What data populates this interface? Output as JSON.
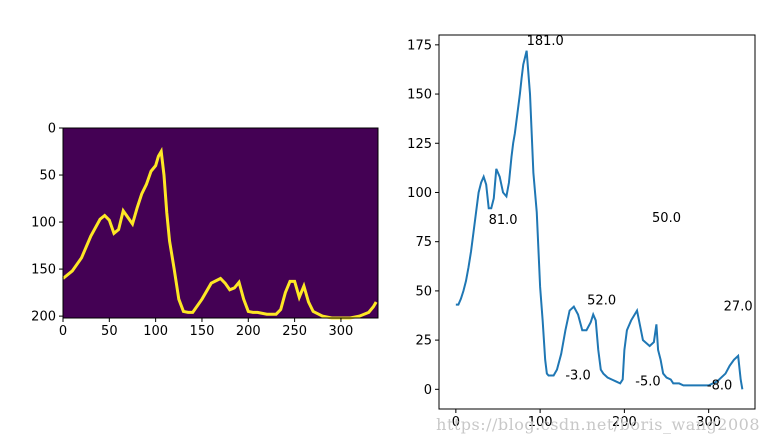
{
  "chart_data": [
    {
      "type": "heatmap",
      "colors": {
        "background": "#440154",
        "curve": "#fde725"
      },
      "xlim": [
        0,
        340
      ],
      "ylim_inverted": [
        0,
        202
      ],
      "x_ticks": [
        "0",
        "50",
        "100",
        "150",
        "200",
        "250",
        "300"
      ],
      "y_ticks": [
        "0",
        "50",
        "100",
        "150",
        "200"
      ],
      "curve": {
        "x": [
          0,
          10,
          20,
          30,
          40,
          45,
          50,
          55,
          60,
          65,
          70,
          75,
          80,
          85,
          90,
          95,
          100,
          103,
          106,
          109,
          112,
          115,
          120,
          125,
          130,
          135,
          140,
          150,
          160,
          170,
          175,
          180,
          185,
          190,
          195,
          200,
          205,
          210,
          220,
          230,
          235,
          240,
          245,
          250,
          255,
          260,
          265,
          270,
          280,
          290,
          300,
          310,
          320,
          330,
          335,
          338
        ],
        "y": [
          160,
          152,
          138,
          115,
          97,
          93,
          98,
          112,
          108,
          88,
          95,
          102,
          85,
          70,
          60,
          46,
          40,
          30,
          25,
          50,
          90,
          120,
          150,
          182,
          195,
          196,
          196,
          182,
          165,
          160,
          165,
          172,
          170,
          164,
          182,
          195,
          196,
          196,
          198,
          198,
          193,
          175,
          163,
          163,
          180,
          168,
          185,
          195,
          200,
          202,
          202,
          202,
          200,
          196,
          190,
          185
        ]
      }
    },
    {
      "type": "line",
      "colors": {
        "line": "#1f77b4"
      },
      "xlim": [
        -20,
        355
      ],
      "ylim": [
        -10,
        180
      ],
      "x_ticks": [
        "0",
        "100",
        "200",
        "300"
      ],
      "y_ticks": [
        "0",
        "25",
        "50",
        "75",
        "100",
        "125",
        "150",
        "175"
      ],
      "series": [
        {
          "x": [
            0,
            3,
            6,
            9,
            12,
            15,
            18,
            21,
            24,
            27,
            30,
            33,
            36,
            39,
            42,
            45,
            48,
            52,
            56,
            60,
            63,
            66,
            68,
            70,
            73,
            76,
            78,
            80,
            84,
            88,
            92,
            96,
            100,
            103,
            106,
            108,
            110,
            113,
            116,
            120,
            125,
            130,
            135,
            140,
            145,
            150,
            155,
            160,
            163,
            166,
            169,
            172,
            175,
            180,
            185,
            190,
            195,
            198,
            200,
            203,
            208,
            215,
            222,
            230,
            235,
            238,
            240,
            243,
            246,
            250,
            255,
            258,
            262,
            265,
            270,
            275,
            280,
            285,
            290,
            300,
            310,
            320,
            325,
            330,
            335,
            338,
            340
          ],
          "y": [
            43,
            43,
            46,
            50,
            55,
            62,
            70,
            80,
            90,
            100,
            105,
            108,
            104,
            92,
            92,
            97,
            112,
            108,
            100,
            98,
            105,
            118,
            125,
            130,
            140,
            150,
            158,
            165,
            172,
            150,
            110,
            90,
            52,
            35,
            15,
            8,
            7,
            7,
            7,
            10,
            18,
            30,
            40,
            42,
            38,
            30,
            30,
            34,
            38,
            35,
            20,
            10,
            8,
            6,
            5,
            4,
            3,
            5,
            20,
            30,
            35,
            40,
            25,
            22,
            24,
            33,
            20,
            15,
            8,
            6,
            5,
            3,
            3,
            3,
            2,
            2,
            2,
            2,
            2,
            2,
            4,
            8,
            12,
            15,
            17,
            5,
            0
          ]
        }
      ],
      "annotations": [
        {
          "text": "181.0",
          "x": 106,
          "y": 175
        },
        {
          "text": "81.0",
          "x": 56,
          "y": 84
        },
        {
          "text": "52.0",
          "x": 173,
          "y": 43
        },
        {
          "text": "-3.0",
          "x": 145,
          "y": 5
        },
        {
          "text": "50.0",
          "x": 250,
          "y": 85
        },
        {
          "text": "-5.0",
          "x": 228,
          "y": 2
        },
        {
          "text": "27.0",
          "x": 335,
          "y": 40
        },
        {
          "text": "-8.0",
          "x": 313,
          "y": 0
        }
      ]
    }
  ],
  "watermark": "https://blog.csdn.net/boris_wang2008"
}
